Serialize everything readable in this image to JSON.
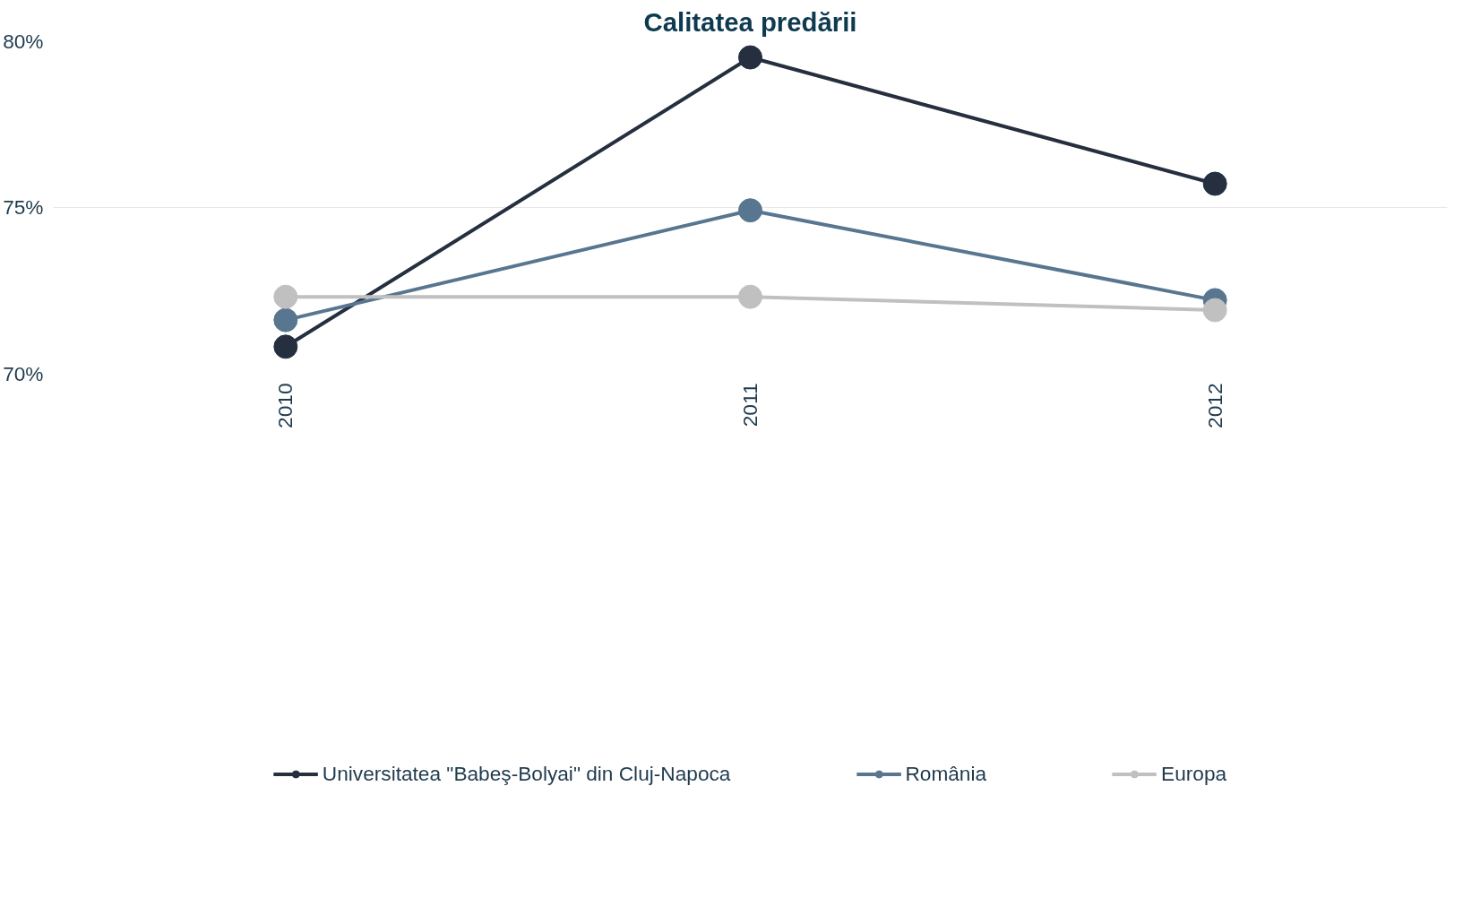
{
  "chart_data": {
    "type": "line",
    "title": "Calitatea predării",
    "categories": [
      "2010",
      "2011",
      "2012"
    ],
    "series": [
      {
        "name": "Universitatea \"Babeş-Bolyai\" din Cluj-Napoca",
        "color": "#252f3f",
        "values": [
          70.8,
          79.5,
          75.7
        ]
      },
      {
        "name": "România",
        "color": "#587690",
        "values": [
          71.6,
          74.9,
          72.2
        ]
      },
      {
        "name": "Europa",
        "color": "#c0c0c0",
        "values": [
          72.3,
          72.3,
          71.9
        ]
      }
    ],
    "ylim": [
      70,
      80
    ],
    "yticks": [
      {
        "value": 70,
        "label": "70%"
      },
      {
        "value": 75,
        "label": "75%"
      },
      {
        "value": 80,
        "label": "80%"
      }
    ],
    "grid": "y",
    "legend": "bottom",
    "marker": "circle",
    "line_style": "solid"
  }
}
